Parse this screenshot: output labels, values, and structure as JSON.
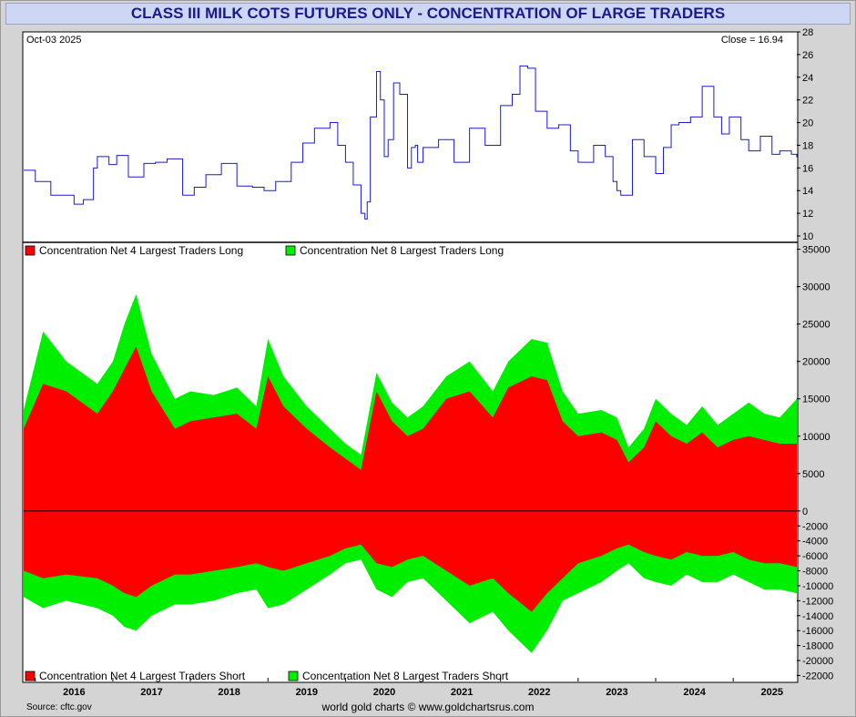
{
  "title": "CLASS III MILK COTS FUTURES ONLY - CONCENTRATION OF LARGE TRADERS",
  "footer": {
    "source": "Source: cftc.gov",
    "credit": "world gold charts © www.goldchartsrus.com"
  },
  "colors": {
    "price_line": "#1a1ad6",
    "red": "#ff0000",
    "green": "#00ee00",
    "title_text": "#1a1a8c"
  },
  "chart_data": [
    {
      "type": "line",
      "name": "price",
      "date_label": "Oct-03  2025",
      "close_label": "Close = 16.94",
      "ylim": [
        10,
        28
      ],
      "yticks": [
        "28",
        "26",
        "24",
        "22",
        "20",
        "18",
        "16",
        "14",
        "12",
        "10"
      ],
      "xlim": [
        2015.85,
        2025.82
      ],
      "x": [
        2015.85,
        2016.0,
        2016.2,
        2016.45,
        2016.5,
        2016.62,
        2016.75,
        2016.8,
        2016.95,
        2017.05,
        2017.2,
        2017.4,
        2017.55,
        2017.7,
        2017.9,
        2018.05,
        2018.2,
        2018.4,
        2018.6,
        2018.8,
        2018.95,
        2019.1,
        2019.3,
        2019.45,
        2019.6,
        2019.8,
        2019.9,
        2020.0,
        2020.1,
        2020.2,
        2020.25,
        2020.28,
        2020.32,
        2020.4,
        2020.45,
        2020.5,
        2020.55,
        2020.62,
        2020.7,
        2020.8,
        2020.85,
        2020.9,
        2020.93,
        2021.0,
        2021.2,
        2021.4,
        2021.6,
        2021.8,
        2022.0,
        2022.15,
        2022.25,
        2022.35,
        2022.45,
        2022.6,
        2022.75,
        2022.9,
        2023.0,
        2023.2,
        2023.35,
        2023.45,
        2023.5,
        2023.55,
        2023.7,
        2023.85,
        2024.0,
        2024.1,
        2024.2,
        2024.3,
        2024.45,
        2024.6,
        2024.75,
        2024.85,
        2024.95,
        2025.1,
        2025.2,
        2025.35,
        2025.5,
        2025.6,
        2025.75,
        2025.82
      ],
      "y": [
        15.8,
        14.8,
        13.6,
        13.6,
        12.8,
        13.2,
        16.0,
        17.0,
        16.3,
        17.1,
        15.2,
        16.4,
        16.5,
        16.8,
        13.6,
        14.3,
        15.4,
        16.4,
        14.4,
        14.3,
        14.0,
        14.8,
        16.5,
        18.2,
        19.5,
        20.0,
        18.0,
        16.5,
        14.5,
        12.0,
        11.5,
        13.0,
        20.5,
        24.5,
        22.0,
        17.0,
        18.5,
        23.5,
        22.5,
        16.0,
        17.8,
        18.0,
        16.5,
        17.8,
        18.5,
        16.5,
        19.5,
        18.0,
        21.5,
        22.5,
        25.0,
        24.8,
        21.0,
        19.5,
        19.8,
        17.5,
        16.5,
        18.0,
        17.0,
        14.8,
        14.0,
        13.6,
        18.5,
        17.0,
        15.5,
        17.8,
        19.8,
        20.0,
        20.5,
        23.2,
        20.5,
        19.0,
        20.5,
        18.5,
        17.5,
        18.8,
        17.2,
        17.5,
        17.2,
        16.94
      ]
    },
    {
      "type": "area",
      "name": "concentration",
      "ylim": [
        -22800,
        35800
      ],
      "yticks": [
        "35000",
        "30000",
        "25000",
        "20000",
        "15000",
        "10000",
        "5000",
        "0",
        "-2000",
        "-4000",
        "-6000",
        "-8000",
        "-10000",
        "-12000",
        "-14000",
        "-16000",
        "-18000",
        "-20000",
        "-22000"
      ],
      "xlim": [
        2015.85,
        2025.82
      ],
      "xtick_labels": [
        "2016",
        "2017",
        "2018",
        "2019",
        "2020",
        "2021",
        "2022",
        "2023",
        "2024",
        "2025"
      ],
      "legend_top": [
        "Concentration Net 4 Largest Traders Long",
        "Concentration Net 8 Largest Traders Long"
      ],
      "legend_bottom": [
        "Concentration Net 4 Largest Traders Short",
        "Concentration Net 8 Largest Traders Short"
      ],
      "x": [
        2015.85,
        2016.1,
        2016.4,
        2016.8,
        2017.0,
        2017.15,
        2017.3,
        2017.5,
        2017.8,
        2018.0,
        2018.3,
        2018.6,
        2018.85,
        2019.0,
        2019.2,
        2019.5,
        2019.8,
        2020.0,
        2020.2,
        2020.4,
        2020.6,
        2020.8,
        2021.0,
        2021.3,
        2021.6,
        2021.9,
        2022.1,
        2022.4,
        2022.6,
        2022.8,
        2023.0,
        2023.3,
        2023.5,
        2023.65,
        2023.85,
        2024.0,
        2024.2,
        2024.4,
        2024.6,
        2024.8,
        2025.0,
        2025.2,
        2025.4,
        2025.6,
        2025.82
      ],
      "long_net4": [
        11000,
        17000,
        16000,
        13000,
        16000,
        19000,
        22000,
        16000,
        11000,
        12000,
        12500,
        13000,
        11000,
        18000,
        14000,
        11000,
        8500,
        7000,
        5500,
        16000,
        12000,
        10000,
        11000,
        15000,
        16000,
        12500,
        16500,
        18000,
        17500,
        12000,
        10000,
        10500,
        9500,
        6500,
        8500,
        12000,
        10000,
        9000,
        10500,
        8500,
        9500,
        10000,
        9500,
        9000,
        9000
      ],
      "long_net8": [
        13500,
        24000,
        20000,
        17000,
        20000,
        25000,
        29000,
        21000,
        15000,
        16000,
        15500,
        16500,
        14000,
        23000,
        18000,
        14000,
        11000,
        9000,
        7500,
        18500,
        14500,
        12500,
        14000,
        18000,
        20000,
        16000,
        20000,
        23000,
        22500,
        16000,
        13000,
        13500,
        12500,
        8500,
        11000,
        15000,
        13000,
        11500,
        14000,
        11500,
        13000,
        14500,
        13000,
        12500,
        15000
      ],
      "short_net4": [
        -8000,
        -9000,
        -8500,
        -9000,
        -10000,
        -11000,
        -11500,
        -10000,
        -8500,
        -8500,
        -8000,
        -7500,
        -7000,
        -7500,
        -8000,
        -7000,
        -6000,
        -5000,
        -4500,
        -7000,
        -7500,
        -6500,
        -6000,
        -8000,
        -10000,
        -9000,
        -11000,
        -13500,
        -11000,
        -9000,
        -7000,
        -6000,
        -5000,
        -4500,
        -5500,
        -6000,
        -6500,
        -5500,
        -6000,
        -6000,
        -5500,
        -6500,
        -7000,
        -7000,
        -7500
      ],
      "short_net8": [
        -11500,
        -13000,
        -12000,
        -13000,
        -14000,
        -15500,
        -16000,
        -14000,
        -12500,
        -12500,
        -12000,
        -11000,
        -10500,
        -13000,
        -12500,
        -10500,
        -8500,
        -7000,
        -6500,
        -10500,
        -11500,
        -9500,
        -9000,
        -12000,
        -15000,
        -13500,
        -16000,
        -19000,
        -16000,
        -12000,
        -11000,
        -9500,
        -8000,
        -7000,
        -9000,
        -9500,
        -10000,
        -8500,
        -9500,
        -9500,
        -8500,
        -9500,
        -10500,
        -10500,
        -11000
      ]
    }
  ]
}
